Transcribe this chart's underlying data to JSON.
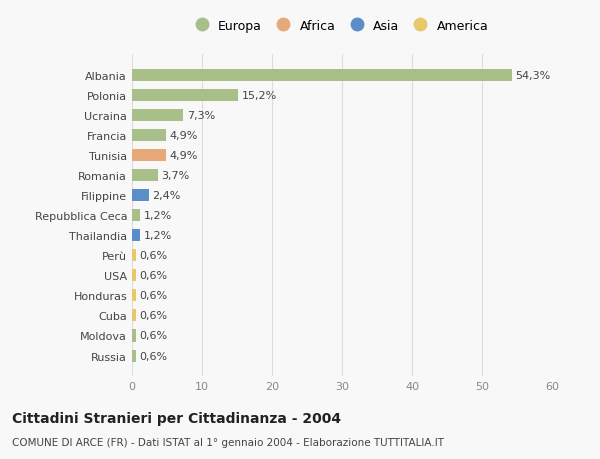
{
  "countries": [
    "Albania",
    "Polonia",
    "Ucraina",
    "Francia",
    "Tunisia",
    "Romania",
    "Filippine",
    "Repubblica Ceca",
    "Thailandia",
    "Perù",
    "USA",
    "Honduras",
    "Cuba",
    "Moldova",
    "Russia"
  ],
  "values": [
    54.3,
    15.2,
    7.3,
    4.9,
    4.9,
    3.7,
    2.4,
    1.2,
    1.2,
    0.6,
    0.6,
    0.6,
    0.6,
    0.6,
    0.6
  ],
  "labels": [
    "54,3%",
    "15,2%",
    "7,3%",
    "4,9%",
    "4,9%",
    "3,7%",
    "2,4%",
    "1,2%",
    "1,2%",
    "0,6%",
    "0,6%",
    "0,6%",
    "0,6%",
    "0,6%",
    "0,6%"
  ],
  "continents": [
    "Europa",
    "Europa",
    "Europa",
    "Europa",
    "Africa",
    "Europa",
    "Asia",
    "Europa",
    "Asia",
    "America",
    "America",
    "America",
    "America",
    "Europa",
    "Europa"
  ],
  "continent_colors": {
    "Europa": "#a8bf8a",
    "Africa": "#e8a97a",
    "Asia": "#5b8dc8",
    "America": "#e8c96a"
  },
  "legend_order": [
    "Europa",
    "Africa",
    "Asia",
    "America"
  ],
  "title": "Cittadini Stranieri per Cittadinanza - 2004",
  "subtitle": "COMUNE DI ARCE (FR) - Dati ISTAT al 1° gennaio 2004 - Elaborazione TUTTITALIA.IT",
  "xlim": [
    0,
    60
  ],
  "xticks": [
    0,
    10,
    20,
    30,
    40,
    50,
    60
  ],
  "bg_color": "#f8f8f8",
  "grid_color": "#dddddd"
}
